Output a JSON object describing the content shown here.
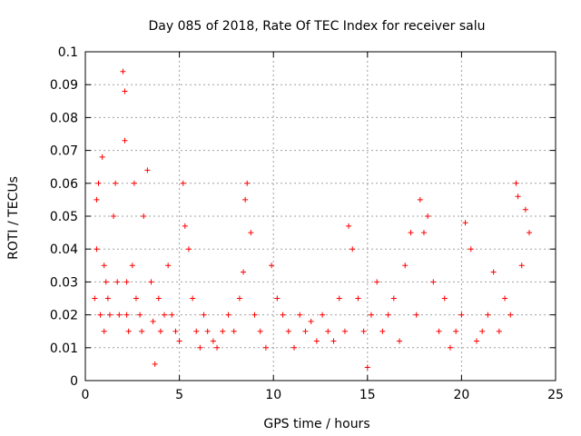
{
  "chart_data": {
    "type": "scatter",
    "title": "Day 085 of 2018, Rate Of TEC Index for receiver salu",
    "xlabel": "GPS time / hours",
    "ylabel": "ROTI / TECUs",
    "xlim": [
      0,
      25
    ],
    "ylim": [
      0,
      0.1
    ],
    "xticks": [
      0,
      5,
      10,
      15,
      20,
      25
    ],
    "xtick_labels": [
      "0",
      "5",
      "10",
      "15",
      "20",
      "25"
    ],
    "yticks": [
      0,
      0.01,
      0.02,
      0.03,
      0.04,
      0.05,
      0.06,
      0.07,
      0.08,
      0.09,
      0.1
    ],
    "ytick_labels": [
      "0",
      "0.01",
      "0.02",
      "0.03",
      "0.04",
      "0.05",
      "0.06",
      "0.07",
      "0.08",
      "0.09",
      "0.1"
    ],
    "grid": true,
    "marker": "+",
    "color": "#ff0000",
    "series": [
      {
        "name": "ROTI",
        "x": [
          0.5,
          0.6,
          0.6,
          0.7,
          0.8,
          0.9,
          1.0,
          1.0,
          1.1,
          1.2,
          1.3,
          1.5,
          1.6,
          1.7,
          1.8,
          2.0,
          2.1,
          2.1,
          2.2,
          2.2,
          2.3,
          2.5,
          2.6,
          2.7,
          2.9,
          3.0,
          3.1,
          3.3,
          3.5,
          3.6,
          3.7,
          3.9,
          4.0,
          4.2,
          4.4,
          4.6,
          4.8,
          5.0,
          5.2,
          5.3,
          5.5,
          5.7,
          5.9,
          6.1,
          6.3,
          6.5,
          6.8,
          7.0,
          7.3,
          7.6,
          7.9,
          8.2,
          8.4,
          8.5,
          8.6,
          8.8,
          9.0,
          9.3,
          9.6,
          9.9,
          10.2,
          10.5,
          10.8,
          11.1,
          11.4,
          11.7,
          12.0,
          12.3,
          12.6,
          12.9,
          13.2,
          13.5,
          13.8,
          14.0,
          14.2,
          14.5,
          14.8,
          15.0,
          15.2,
          15.5,
          15.8,
          16.1,
          16.4,
          16.7,
          17.0,
          17.3,
          17.6,
          17.8,
          18.0,
          18.2,
          18.5,
          18.8,
          19.1,
          19.4,
          19.7,
          20.0,
          20.2,
          20.5,
          20.8,
          21.1,
          21.4,
          21.7,
          22.0,
          22.3,
          22.6,
          22.9,
          23.0,
          23.2,
          23.4,
          23.6
        ],
        "y": [
          0.025,
          0.055,
          0.04,
          0.06,
          0.02,
          0.068,
          0.035,
          0.015,
          0.03,
          0.025,
          0.02,
          0.05,
          0.06,
          0.03,
          0.02,
          0.094,
          0.088,
          0.073,
          0.03,
          0.02,
          0.015,
          0.035,
          0.06,
          0.025,
          0.02,
          0.015,
          0.05,
          0.064,
          0.03,
          0.018,
          0.005,
          0.025,
          0.015,
          0.02,
          0.035,
          0.02,
          0.015,
          0.012,
          0.06,
          0.047,
          0.04,
          0.025,
          0.015,
          0.01,
          0.02,
          0.015,
          0.012,
          0.01,
          0.015,
          0.02,
          0.015,
          0.025,
          0.033,
          0.055,
          0.06,
          0.045,
          0.02,
          0.015,
          0.01,
          0.035,
          0.025,
          0.02,
          0.015,
          0.01,
          0.02,
          0.015,
          0.018,
          0.012,
          0.02,
          0.015,
          0.012,
          0.025,
          0.015,
          0.047,
          0.04,
          0.025,
          0.015,
          0.004,
          0.02,
          0.03,
          0.015,
          0.02,
          0.025,
          0.012,
          0.035,
          0.045,
          0.02,
          0.055,
          0.045,
          0.05,
          0.03,
          0.015,
          0.025,
          0.01,
          0.015,
          0.02,
          0.048,
          0.04,
          0.012,
          0.015,
          0.02,
          0.033,
          0.015,
          0.025,
          0.02,
          0.06,
          0.056,
          0.035,
          0.052,
          0.045
        ]
      }
    ]
  }
}
